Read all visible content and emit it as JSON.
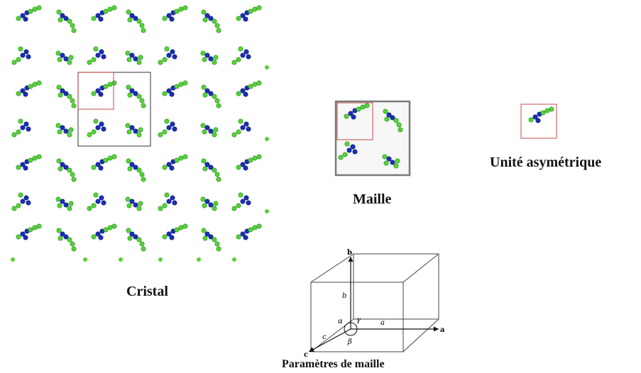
{
  "labels": {
    "crystal": "Cristal",
    "cell": "Maille",
    "asymmetric_unit": "Unité asymétrique",
    "cell_parameters": "Paramètres de maille"
  },
  "axes": {
    "a": "a",
    "b": "b",
    "c": "c",
    "edge_a": "a",
    "edge_b": "b",
    "edge_c": "c",
    "alpha": "α",
    "beta": "β",
    "gamma": "γ"
  },
  "colors": {
    "atom_blue": "#1a2fb8",
    "atom_green": "#55d23a",
    "cell_border": "#7a7a7a",
    "asym_border": "#c94a4a"
  }
}
